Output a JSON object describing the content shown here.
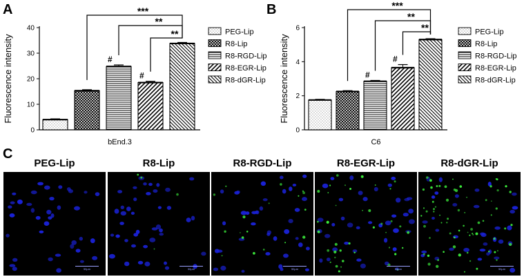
{
  "chart_data": [
    {
      "panel": "A",
      "type": "bar",
      "xlabel": "bEnd.3",
      "ylabel": "Fluorescence intensity",
      "ylim": [
        0,
        40
      ],
      "yticks": [
        0,
        10,
        20,
        30,
        40
      ],
      "series": [
        {
          "name": "PEG-Lip",
          "value": 4.0,
          "err": 0.3,
          "pattern": "dots"
        },
        {
          "name": "R8-Lip",
          "value": 15.3,
          "err": 0.4,
          "pattern": "crosshatch"
        },
        {
          "name": "R8-RGD-Lip",
          "value": 24.8,
          "err": 0.6,
          "pattern": "horizontal"
        },
        {
          "name": "R8-EGR-Lip",
          "value": 18.5,
          "err": 0.5,
          "pattern": "forward-diagonal"
        },
        {
          "name": "R8-dGR-Lip",
          "value": 33.8,
          "err": 0.4,
          "pattern": "back-diagonal"
        }
      ],
      "hash_marks": [
        {
          "label": "#",
          "bar": 2
        },
        {
          "label": "#",
          "bar": 3
        }
      ],
      "significance": [
        {
          "label": "***",
          "from": 1,
          "to": 4
        },
        {
          "label": "**",
          "from": 2,
          "to": 4
        },
        {
          "label": "**",
          "from": 3,
          "to": 4
        }
      ],
      "legend_position": "right",
      "grid": false
    },
    {
      "panel": "B",
      "type": "bar",
      "xlabel": "C6",
      "ylabel": "Fluorescence intensity",
      "ylim": [
        0,
        6
      ],
      "yticks": [
        0,
        2,
        4,
        6
      ],
      "series": [
        {
          "name": "PEG-Lip",
          "value": 1.75,
          "err": 0.04,
          "pattern": "dots"
        },
        {
          "name": "R8-Lip",
          "value": 2.25,
          "err": 0.05,
          "pattern": "crosshatch"
        },
        {
          "name": "R8-RGD-Lip",
          "value": 2.85,
          "err": 0.05,
          "pattern": "horizontal"
        },
        {
          "name": "R8-EGR-Lip",
          "value": 3.65,
          "err": 0.18,
          "pattern": "forward-diagonal"
        },
        {
          "name": "R8-dGR-Lip",
          "value": 5.3,
          "err": 0.05,
          "pattern": "back-diagonal"
        }
      ],
      "hash_marks": [
        {
          "label": "#",
          "bar": 2
        },
        {
          "label": "#",
          "bar": 3
        }
      ],
      "significance": [
        {
          "label": "***",
          "from": 1,
          "to": 4
        },
        {
          "label": "**",
          "from": 2,
          "to": 4
        },
        {
          "label": "**",
          "from": 3,
          "to": 4
        }
      ],
      "legend_position": "right",
      "grid": false
    }
  ],
  "panels": {
    "a_label": "A",
    "b_label": "B",
    "c_label": "C"
  },
  "microscopy": {
    "titles": [
      "PEG-Lip",
      "R8-Lip",
      "R8-RGD-Lip",
      "R8-EGR-Lip",
      "R8-dGR-Lip"
    ],
    "green_level": [
      0.0,
      0.05,
      0.25,
      0.55,
      1.0
    ],
    "scale_label": "50μm",
    "colors": {
      "nucleus": "#1a22d8",
      "uptake": "#3cf03c"
    }
  }
}
